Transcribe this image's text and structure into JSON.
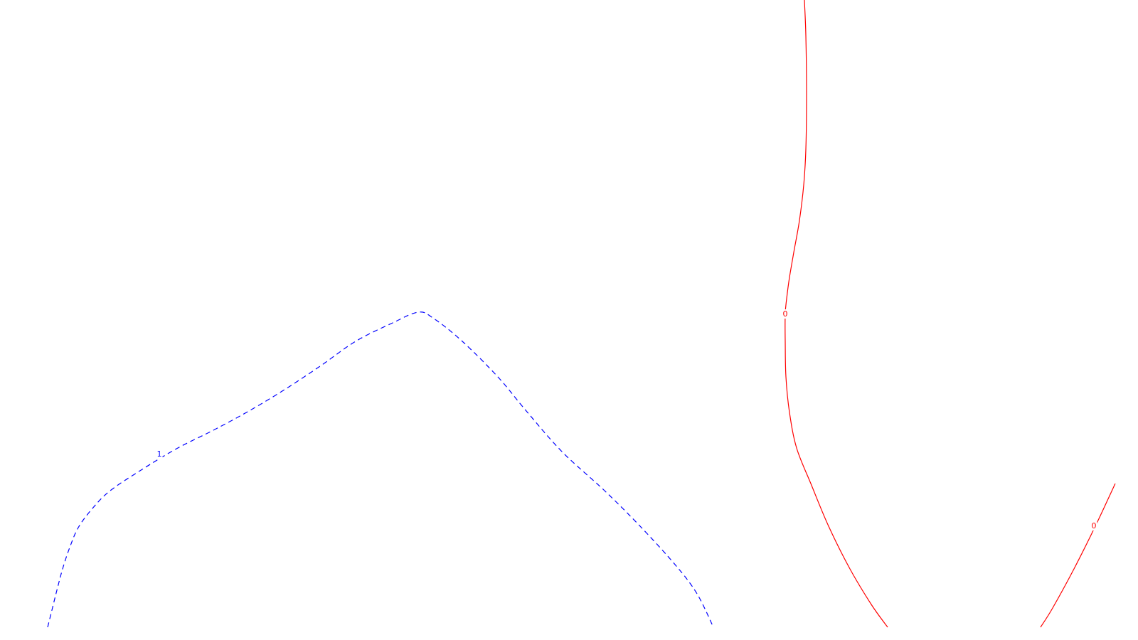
{
  "chart_data": {
    "type": "contour",
    "title": "",
    "xlabel": "",
    "ylabel": "",
    "grid": false,
    "legend": "none",
    "series": [
      {
        "level": "1",
        "style": "dashed",
        "color": "#0000ff",
        "labels": [
          {
            "text": "1",
            "at_point": 10
          }
        ]
      },
      {
        "level": "0",
        "style": "solid",
        "color": "#ff0000",
        "labels": [
          {
            "text": "0",
            "at_point": 9
          }
        ]
      },
      {
        "level": "0",
        "style": "solid",
        "color": "#ff0000",
        "labels": [
          {
            "text": "0",
            "at_point": 1
          }
        ]
      }
    ]
  }
}
